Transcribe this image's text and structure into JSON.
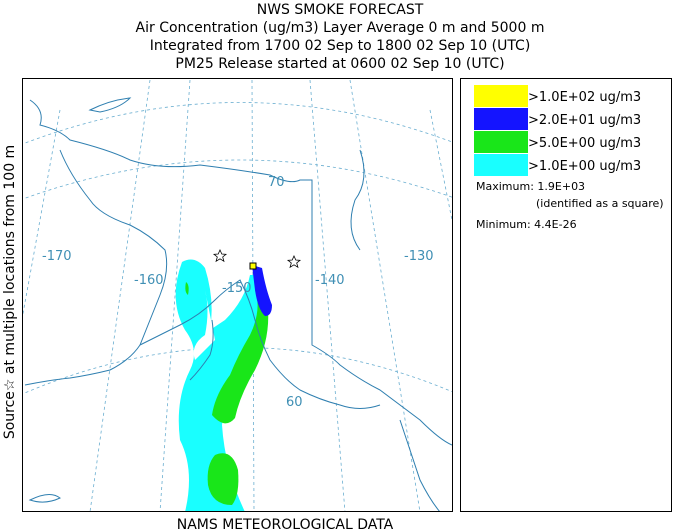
{
  "header": {
    "title": "NWS SMOKE FORECAST",
    "lines": [
      "Air Concentration (ug/m3) Layer Average    0 m and  5000 m",
      "Integrated from 1700 02 Sep to 1800 02 Sep 10 (UTC)",
      "PM25 Release started at 0600 02 Sep 10 (UTC)"
    ]
  },
  "side_label": "Source☆ at multiple locations   from   100 m",
  "footer": "NAMS METEOROLOGICAL DATA",
  "map": {
    "labels": [
      "-170",
      "-160",
      "-150",
      "-140",
      "-130",
      "70",
      "60"
    ]
  },
  "legend": {
    "items": [
      {
        "label": ">1.0E+02 ug/m3",
        "color": "#ffff00"
      },
      {
        "label": ">2.0E+01 ug/m3",
        "color": "#1414ff"
      },
      {
        "label": ">5.0E+00 ug/m3",
        "color": "#19e619"
      },
      {
        "label": ">1.0E+00 ug/m3",
        "color": "#19ffff"
      }
    ],
    "maximum": "Maximum: 1.9E+03",
    "maximum_note": "(identified as a square)",
    "minimum": "Minimum: 4.4E-26"
  }
}
